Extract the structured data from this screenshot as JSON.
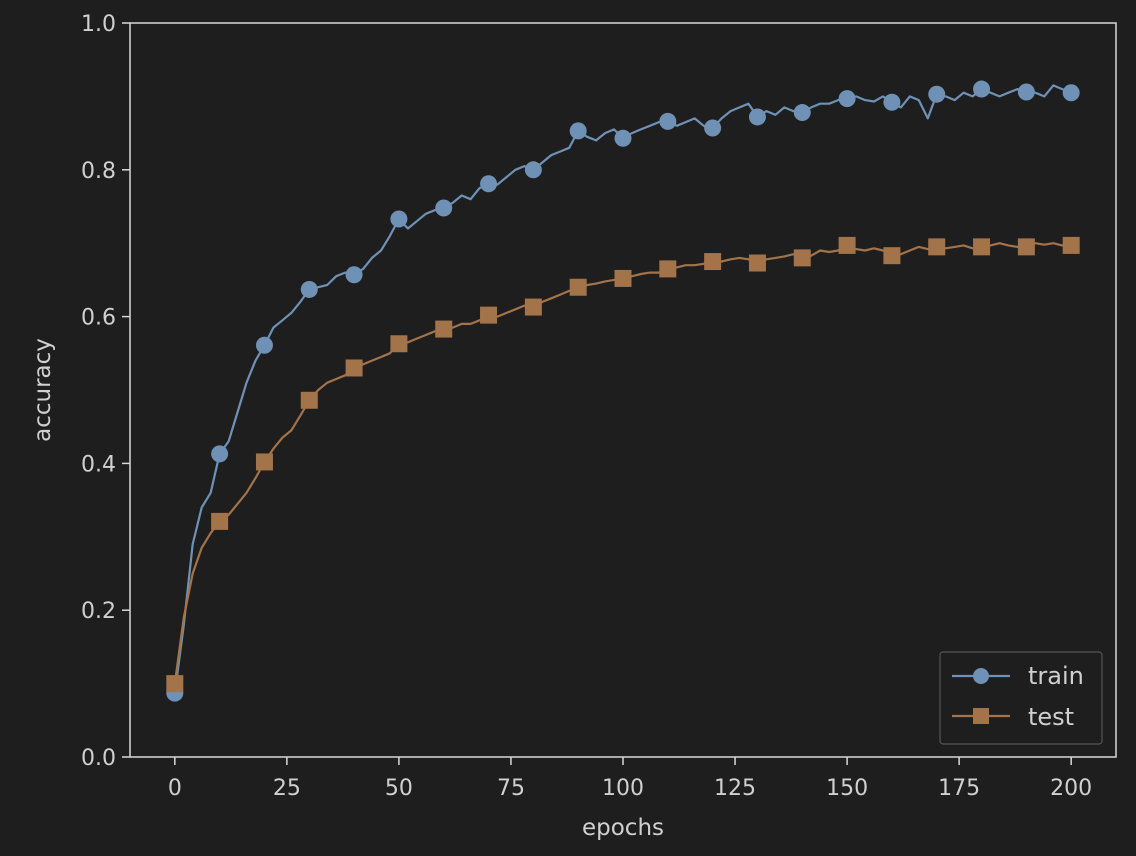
{
  "chart_data": {
    "type": "line",
    "title": "",
    "xlabel": "epochs",
    "ylabel": "accuracy",
    "xlim": [
      -10,
      210
    ],
    "ylim": [
      0.0,
      1.0
    ],
    "xticks": [
      "0",
      "25",
      "50",
      "75",
      "100",
      "125",
      "150",
      "175",
      "200"
    ],
    "xtick_values": [
      0,
      25,
      50,
      75,
      100,
      125,
      150,
      175,
      200
    ],
    "yticks": [
      "0.0",
      "0.2",
      "0.4",
      "0.6",
      "0.8",
      "1.0"
    ],
    "ytick_values": [
      0.0,
      0.2,
      0.4,
      0.6,
      0.8,
      1.0
    ],
    "grid": false,
    "legend_position": "lower-right",
    "background": "#1e1e1e",
    "axes_color": "#d8d8d8",
    "series": [
      {
        "name": "train",
        "color": "#6f91b5",
        "marker": "circle",
        "marker_x": [
          0,
          10,
          20,
          30,
          40,
          50,
          60,
          70,
          80,
          90,
          100,
          110,
          120,
          130,
          140,
          150,
          160,
          170,
          180,
          190,
          200
        ],
        "x": [
          0,
          2,
          4,
          6,
          8,
          10,
          12,
          14,
          16,
          18,
          20,
          22,
          24,
          26,
          28,
          30,
          32,
          34,
          36,
          38,
          40,
          42,
          44,
          46,
          48,
          50,
          52,
          54,
          56,
          58,
          60,
          62,
          64,
          66,
          68,
          70,
          72,
          74,
          76,
          78,
          80,
          82,
          84,
          86,
          88,
          90,
          92,
          94,
          96,
          98,
          100,
          102,
          104,
          106,
          108,
          110,
          112,
          114,
          116,
          118,
          120,
          122,
          124,
          126,
          128,
          130,
          132,
          134,
          136,
          138,
          140,
          142,
          144,
          146,
          148,
          150,
          152,
          154,
          156,
          158,
          160,
          162,
          164,
          166,
          168,
          170,
          172,
          174,
          176,
          178,
          180,
          182,
          184,
          186,
          188,
          190,
          192,
          194,
          196,
          198,
          200
        ],
        "values": [
          0.087,
          0.18,
          0.29,
          0.34,
          0.36,
          0.413,
          0.43,
          0.47,
          0.51,
          0.54,
          0.561,
          0.585,
          0.595,
          0.605,
          0.62,
          0.637,
          0.64,
          0.643,
          0.655,
          0.66,
          0.657,
          0.665,
          0.68,
          0.69,
          0.71,
          0.733,
          0.72,
          0.73,
          0.74,
          0.745,
          0.748,
          0.755,
          0.765,
          0.76,
          0.775,
          0.781,
          0.78,
          0.79,
          0.8,
          0.805,
          0.8,
          0.81,
          0.82,
          0.825,
          0.83,
          0.853,
          0.845,
          0.84,
          0.85,
          0.855,
          0.843,
          0.85,
          0.855,
          0.86,
          0.865,
          0.866,
          0.86,
          0.865,
          0.87,
          0.86,
          0.857,
          0.87,
          0.88,
          0.885,
          0.89,
          0.872,
          0.88,
          0.875,
          0.885,
          0.88,
          0.878,
          0.885,
          0.89,
          0.89,
          0.895,
          0.897,
          0.9,
          0.895,
          0.893,
          0.9,
          0.892,
          0.885,
          0.9,
          0.895,
          0.87,
          0.903,
          0.9,
          0.895,
          0.905,
          0.9,
          0.91,
          0.905,
          0.9,
          0.905,
          0.91,
          0.906,
          0.905,
          0.9,
          0.915,
          0.91,
          0.905
        ]
      },
      {
        "name": "test",
        "color": "#a3734a",
        "marker": "square",
        "marker_x": [
          0,
          10,
          20,
          30,
          40,
          50,
          60,
          70,
          80,
          90,
          100,
          110,
          120,
          130,
          140,
          150,
          160,
          170,
          180,
          190,
          200
        ],
        "x": [
          0,
          2,
          4,
          6,
          8,
          10,
          12,
          14,
          16,
          18,
          20,
          22,
          24,
          26,
          28,
          30,
          32,
          34,
          36,
          38,
          40,
          42,
          44,
          46,
          48,
          50,
          52,
          54,
          56,
          58,
          60,
          62,
          64,
          66,
          68,
          70,
          72,
          74,
          76,
          78,
          80,
          82,
          84,
          86,
          88,
          90,
          92,
          94,
          96,
          98,
          100,
          102,
          104,
          106,
          108,
          110,
          112,
          114,
          116,
          118,
          120,
          122,
          124,
          126,
          128,
          130,
          132,
          134,
          136,
          138,
          140,
          142,
          144,
          146,
          148,
          150,
          152,
          154,
          156,
          158,
          160,
          162,
          164,
          166,
          168,
          170,
          172,
          174,
          176,
          178,
          180,
          182,
          184,
          186,
          188,
          190,
          192,
          194,
          196,
          198,
          200
        ],
        "values": [
          0.1,
          0.19,
          0.25,
          0.285,
          0.305,
          0.321,
          0.33,
          0.345,
          0.36,
          0.38,
          0.402,
          0.42,
          0.435,
          0.445,
          0.465,
          0.486,
          0.5,
          0.51,
          0.515,
          0.52,
          0.53,
          0.535,
          0.54,
          0.545,
          0.55,
          0.563,
          0.565,
          0.57,
          0.575,
          0.58,
          0.583,
          0.585,
          0.59,
          0.59,
          0.595,
          0.602,
          0.6,
          0.605,
          0.61,
          0.615,
          0.613,
          0.62,
          0.625,
          0.63,
          0.635,
          0.64,
          0.643,
          0.645,
          0.648,
          0.65,
          0.652,
          0.655,
          0.658,
          0.66,
          0.66,
          0.665,
          0.667,
          0.67,
          0.67,
          0.672,
          0.675,
          0.675,
          0.678,
          0.68,
          0.678,
          0.673,
          0.678,
          0.68,
          0.682,
          0.685,
          0.68,
          0.683,
          0.69,
          0.688,
          0.69,
          0.697,
          0.692,
          0.69,
          0.693,
          0.69,
          0.683,
          0.685,
          0.69,
          0.695,
          0.692,
          0.695,
          0.693,
          0.695,
          0.697,
          0.693,
          0.695,
          0.697,
          0.7,
          0.697,
          0.695,
          0.695,
          0.7,
          0.698,
          0.7,
          0.697,
          0.697
        ]
      }
    ]
  }
}
